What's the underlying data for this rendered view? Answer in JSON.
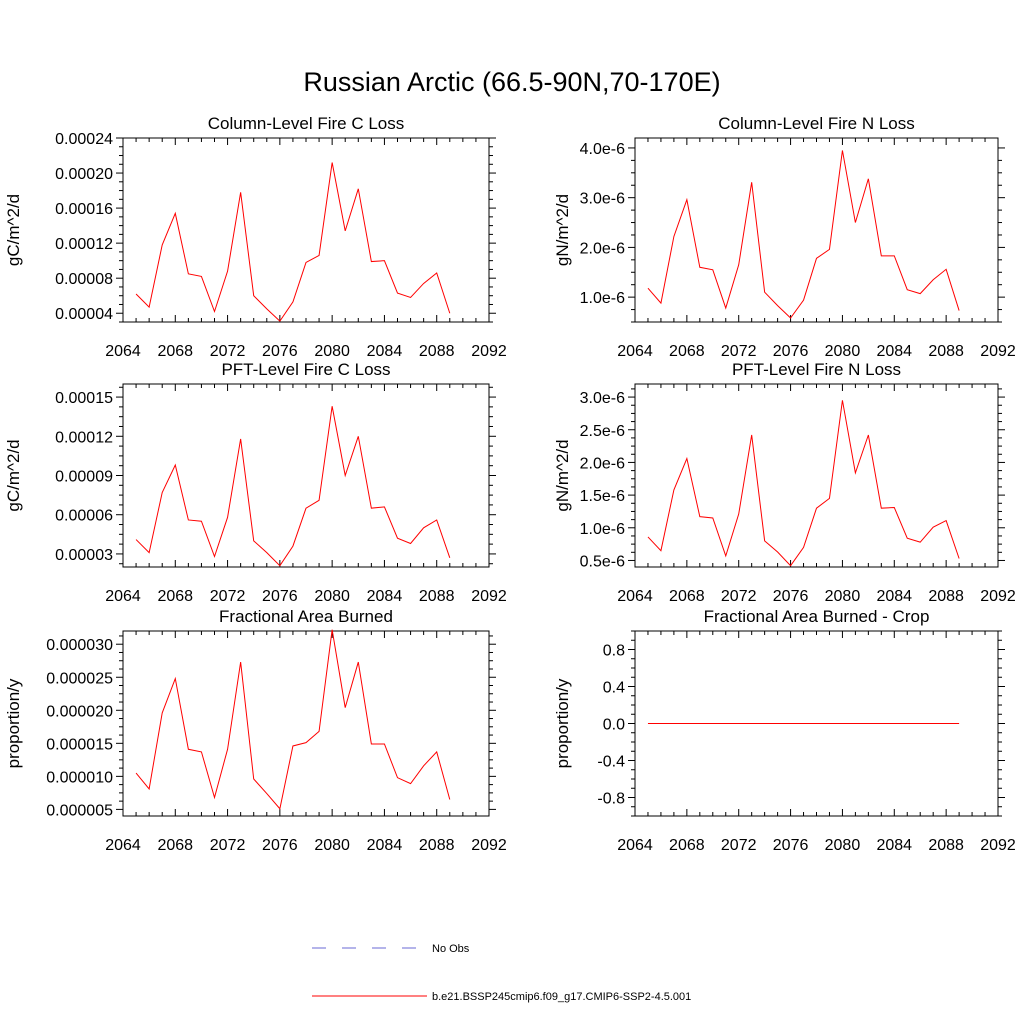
{
  "title": "Russian Arctic (66.5-90N,70-170E)",
  "colors": {
    "model": "#ff0000",
    "obs": "#6a6ad6",
    "axes": "#000000"
  },
  "chart_data": [
    {
      "type": "line",
      "title": "Column-Level Fire C Loss",
      "ylabel": "gC/m^2/d",
      "xlim": [
        2064,
        2092
      ],
      "ylim": [
        3e-05,
        0.00024
      ],
      "xticks": [
        "2064",
        "2068",
        "2072",
        "2076",
        "2080",
        "2084",
        "2088",
        "2092"
      ],
      "yticks": [
        {
          "value": 4e-05,
          "label": "0.00004"
        },
        {
          "value": 8e-05,
          "label": "0.00008"
        },
        {
          "value": 0.00012,
          "label": "0.00012"
        },
        {
          "value": 0.00016,
          "label": "0.00016"
        },
        {
          "value": 0.0002,
          "label": "0.00020"
        },
        {
          "value": 0.00024,
          "label": "0.00024"
        }
      ],
      "x": [
        2065,
        2066,
        2067,
        2068,
        2069,
        2070,
        2071,
        2072,
        2073,
        2074,
        2075,
        2076,
        2077,
        2078,
        2079,
        2080,
        2081,
        2082,
        2083,
        2084,
        2085,
        2086,
        2087,
        2088,
        2089
      ],
      "series": [
        {
          "values": [
            6.2e-05,
            4.7e-05,
            0.000118,
            0.000154,
            8.5e-05,
            8.2e-05,
            4.2e-05,
            8.8e-05,
            0.000178,
            6e-05,
            4.5e-05,
            3.1e-05,
            5.3e-05,
            9.8e-05,
            0.000106,
            0.000212,
            0.000134,
            0.000182,
            9.9e-05,
            0.0001,
            6.3e-05,
            5.8e-05,
            7.4e-05,
            8.6e-05,
            4e-05
          ]
        }
      ]
    },
    {
      "type": "line",
      "title": "Column-Level Fire N Loss",
      "ylabel": "gN/m^2/d",
      "xlim": [
        2064,
        2092
      ],
      "ylim": [
        5e-07,
        4.2e-06
      ],
      "xticks": [
        "2064",
        "2068",
        "2072",
        "2076",
        "2080",
        "2084",
        "2088",
        "2092"
      ],
      "yticks": [
        {
          "value": 1e-06,
          "label": "1.0e-6"
        },
        {
          "value": 2e-06,
          "label": "2.0e-6"
        },
        {
          "value": 3e-06,
          "label": "3.0e-6"
        },
        {
          "value": 4e-06,
          "label": "4.0e-6"
        }
      ],
      "x": [
        2065,
        2066,
        2067,
        2068,
        2069,
        2070,
        2071,
        2072,
        2073,
        2074,
        2075,
        2076,
        2077,
        2078,
        2079,
        2080,
        2081,
        2082,
        2083,
        2084,
        2085,
        2086,
        2087,
        2088,
        2089
      ],
      "series": [
        {
          "values": [
            1.18e-06,
            8.8e-07,
            2.22e-06,
            2.96e-06,
            1.6e-06,
            1.55e-06,
            7.8e-07,
            1.65e-06,
            3.31e-06,
            1.1e-06,
            8.3e-07,
            5.8e-07,
            9.4e-07,
            1.78e-06,
            1.96e-06,
            3.95e-06,
            2.5e-06,
            3.38e-06,
            1.83e-06,
            1.83e-06,
            1.15e-06,
            1.07e-06,
            1.35e-06,
            1.56e-06,
            7.3e-07
          ]
        }
      ]
    },
    {
      "type": "line",
      "title": "PFT-Level Fire C Loss",
      "ylabel": "gC/m^2/d",
      "xlim": [
        2064,
        2092
      ],
      "ylim": [
        2e-05,
        0.00016
      ],
      "xticks": [
        "2064",
        "2068",
        "2072",
        "2076",
        "2080",
        "2084",
        "2088",
        "2092"
      ],
      "yticks": [
        {
          "value": 3e-05,
          "label": "0.00003"
        },
        {
          "value": 6e-05,
          "label": "0.00006"
        },
        {
          "value": 9e-05,
          "label": "0.00009"
        },
        {
          "value": 0.00012,
          "label": "0.00012"
        },
        {
          "value": 0.00015,
          "label": "0.00015"
        }
      ],
      "x": [
        2065,
        2066,
        2067,
        2068,
        2069,
        2070,
        2071,
        2072,
        2073,
        2074,
        2075,
        2076,
        2077,
        2078,
        2079,
        2080,
        2081,
        2082,
        2083,
        2084,
        2085,
        2086,
        2087,
        2088,
        2089
      ],
      "series": [
        {
          "values": [
            4.1e-05,
            3.1e-05,
            7.7e-05,
            9.8e-05,
            5.6e-05,
            5.5e-05,
            2.8e-05,
            5.8e-05,
            0.000118,
            4e-05,
            3.1e-05,
            2.1e-05,
            3.6e-05,
            6.5e-05,
            7.1e-05,
            0.000143,
            9e-05,
            0.00012,
            6.5e-05,
            6.6e-05,
            4.2e-05,
            3.8e-05,
            5e-05,
            5.6e-05,
            2.7e-05
          ]
        }
      ]
    },
    {
      "type": "line",
      "title": "PFT-Level Fire N Loss",
      "ylabel": "gN/m^2/d",
      "xlim": [
        2064,
        2092
      ],
      "ylim": [
        4e-07,
        3.2e-06
      ],
      "xticks": [
        "2064",
        "2068",
        "2072",
        "2076",
        "2080",
        "2084",
        "2088",
        "2092"
      ],
      "yticks": [
        {
          "value": 5e-07,
          "label": "0.5e-6"
        },
        {
          "value": 1e-06,
          "label": "1.0e-6"
        },
        {
          "value": 1.5e-06,
          "label": "1.5e-6"
        },
        {
          "value": 2e-06,
          "label": "2.0e-6"
        },
        {
          "value": 2.5e-06,
          "label": "2.5e-6"
        },
        {
          "value": 3e-06,
          "label": "3.0e-6"
        }
      ],
      "x": [
        2065,
        2066,
        2067,
        2068,
        2069,
        2070,
        2071,
        2072,
        2073,
        2074,
        2075,
        2076,
        2077,
        2078,
        2079,
        2080,
        2081,
        2082,
        2083,
        2084,
        2085,
        2086,
        2087,
        2088,
        2089
      ],
      "series": [
        {
          "values": [
            8.6e-07,
            6.5e-07,
            1.58e-06,
            2.06e-06,
            1.17e-06,
            1.15e-06,
            5.7e-07,
            1.21e-06,
            2.42e-06,
            8e-07,
            6.3e-07,
            4.2e-07,
            7e-07,
            1.3e-06,
            1.45e-06,
            2.95e-06,
            1.84e-06,
            2.42e-06,
            1.3e-06,
            1.31e-06,
            8.4e-07,
            7.8e-07,
            1.01e-06,
            1.11e-06,
            5.3e-07
          ]
        }
      ]
    },
    {
      "type": "line",
      "title": "Fractional Area Burned",
      "ylabel": "proportion/y",
      "xlim": [
        2064,
        2092
      ],
      "ylim": [
        4e-06,
        3.2e-05
      ],
      "xticks": [
        "2064",
        "2068",
        "2072",
        "2076",
        "2080",
        "2084",
        "2088",
        "2092"
      ],
      "yticks": [
        {
          "value": 5e-06,
          "label": "0.000005"
        },
        {
          "value": 1e-05,
          "label": "0.000010"
        },
        {
          "value": 1.5e-05,
          "label": "0.000015"
        },
        {
          "value": 2e-05,
          "label": "0.000020"
        },
        {
          "value": 2.5e-05,
          "label": "0.000025"
        },
        {
          "value": 3e-05,
          "label": "0.000030"
        }
      ],
      "x": [
        2065,
        2066,
        2067,
        2068,
        2069,
        2070,
        2071,
        2072,
        2073,
        2074,
        2075,
        2076,
        2077,
        2078,
        2079,
        2080,
        2081,
        2082,
        2083,
        2084,
        2085,
        2086,
        2087,
        2088,
        2089
      ],
      "series": [
        {
          "values": [
            1.05e-05,
            8.1e-06,
            1.96e-05,
            2.48e-05,
            1.41e-05,
            1.37e-05,
            6.8e-06,
            1.41e-05,
            2.73e-05,
            9.6e-06,
            7.4e-06,
            5.1e-06,
            1.46e-05,
            1.51e-05,
            1.68e-05,
            3.22e-05,
            2.04e-05,
            2.73e-05,
            1.49e-05,
            1.49e-05,
            9.8e-06,
            8.9e-06,
            1.16e-05,
            1.37e-05,
            6.5e-06
          ]
        }
      ]
    },
    {
      "type": "line",
      "title": "Fractional Area Burned - Crop",
      "ylabel": "proportion/y",
      "xlim": [
        2064,
        2092
      ],
      "ylim": [
        -1,
        1
      ],
      "xticks": [
        "2064",
        "2068",
        "2072",
        "2076",
        "2080",
        "2084",
        "2088",
        "2092"
      ],
      "yticks": [
        {
          "value": -0.8,
          "label": "-0.8"
        },
        {
          "value": -0.4,
          "label": "-0.4"
        },
        {
          "value": 0,
          "label": "0.0"
        },
        {
          "value": 0.4,
          "label": "0.4"
        },
        {
          "value": 0.8,
          "label": "0.8"
        }
      ],
      "x": [
        2065,
        2066,
        2067,
        2068,
        2069,
        2070,
        2071,
        2072,
        2073,
        2074,
        2075,
        2076,
        2077,
        2078,
        2079,
        2080,
        2081,
        2082,
        2083,
        2084,
        2085,
        2086,
        2087,
        2088,
        2089
      ],
      "series": [
        {
          "values": [
            0,
            0,
            0,
            0,
            0,
            0,
            0,
            0,
            0,
            0,
            0,
            0,
            0,
            0,
            0,
            0,
            0,
            0,
            0,
            0,
            0,
            0,
            0,
            0,
            0
          ]
        }
      ]
    }
  ],
  "legend": {
    "entries": [
      {
        "label": "No Obs",
        "style": "dashed",
        "color": "#6a6ad6"
      },
      {
        "label": "b.e21.BSSP245cmip6.f09_g17.CMIP6-SSP2-4.5.001",
        "style": "solid",
        "color": "#ff0000"
      }
    ]
  }
}
